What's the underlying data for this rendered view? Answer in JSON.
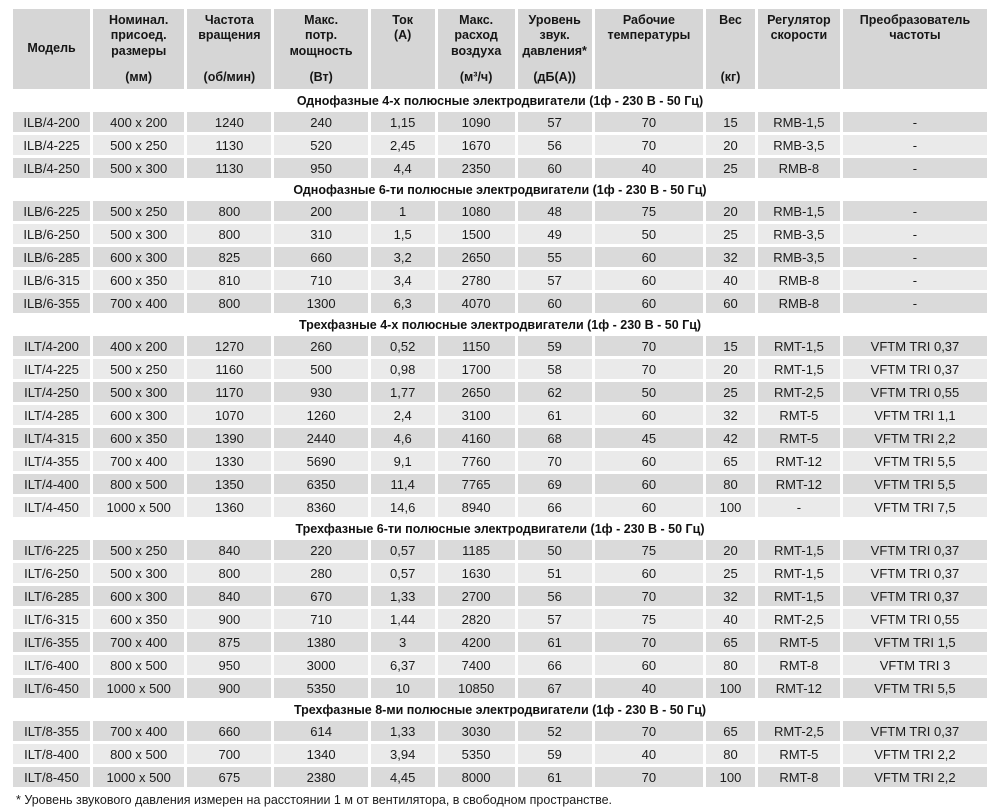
{
  "colors": {
    "header_bg": "#d6d6d6",
    "row_odd_bg": "#dadada",
    "row_even_bg": "#eaeaea",
    "section_bg": "#ffffff",
    "text": "#1b1b1b"
  },
  "table": {
    "headers": [
      {
        "key": "model",
        "lines": [
          "Модель"
        ],
        "valign": "center"
      },
      {
        "key": "dimensions",
        "lines": [
          "Номинал.",
          "присоед.",
          "размеры"
        ],
        "unit": "(мм)"
      },
      {
        "key": "speed",
        "lines": [
          "Частота",
          "вращения"
        ],
        "unit": "(об/мин)"
      },
      {
        "key": "power",
        "lines": [
          "Макс.",
          "потр.",
          "мощность"
        ],
        "unit": "(Вт)"
      },
      {
        "key": "current",
        "lines": [
          "Ток",
          "(А)"
        ]
      },
      {
        "key": "airflow",
        "lines": [
          "Макс.",
          "расход",
          "воздуха"
        ],
        "unit": "(м³/ч)"
      },
      {
        "key": "noise",
        "lines": [
          "Уровень",
          "звук.",
          "давления*"
        ],
        "unit": "(дБ(А))"
      },
      {
        "key": "temperature",
        "lines": [
          "Рабочие",
          "температуры"
        ]
      },
      {
        "key": "weight",
        "lines": [
          "Вес"
        ],
        "unit": "(кг)"
      },
      {
        "key": "regulator",
        "lines": [
          "Регулятор",
          "скорости"
        ]
      },
      {
        "key": "converter",
        "lines": [
          "Преобразователь",
          "частоты"
        ]
      }
    ],
    "sections": [
      {
        "title": "Однофазные 4-х полюсные электродвигатели (1ф - 230 В - 50 Гц)",
        "rows": [
          [
            "ILB/4-200",
            "400 x 200",
            "1240",
            "240",
            "1,15",
            "1090",
            "57",
            "70",
            "15",
            "RMB-1,5",
            "-"
          ],
          [
            "ILB/4-225",
            "500 x 250",
            "1130",
            "520",
            "2,45",
            "1670",
            "56",
            "70",
            "20",
            "RMB-3,5",
            "-"
          ],
          [
            "ILB/4-250",
            "500 x 300",
            "1130",
            "950",
            "4,4",
            "2350",
            "60",
            "40",
            "25",
            "RMB-8",
            "-"
          ]
        ]
      },
      {
        "title": "Однофазные 6-ти полюсные электродвигатели (1ф - 230 В - 50 Гц)",
        "rows": [
          [
            "ILB/6-225",
            "500 x 250",
            "800",
            "200",
            "1",
            "1080",
            "48",
            "75",
            "20",
            "RMB-1,5",
            "-"
          ],
          [
            "ILB/6-250",
            "500 x 300",
            "800",
            "310",
            "1,5",
            "1500",
            "49",
            "50",
            "25",
            "RMB-3,5",
            "-"
          ],
          [
            "ILB/6-285",
            "600 x 300",
            "825",
            "660",
            "3,2",
            "2650",
            "55",
            "60",
            "32",
            "RMB-3,5",
            "-"
          ],
          [
            "ILB/6-315",
            "600 x 350",
            "810",
            "710",
            "3,4",
            "2780",
            "57",
            "60",
            "40",
            "RMB-8",
            "-"
          ],
          [
            "ILB/6-355",
            "700 x 400",
            "800",
            "1300",
            "6,3",
            "4070",
            "60",
            "60",
            "60",
            "RMB-8",
            "-"
          ]
        ]
      },
      {
        "title": "Трехфазные 4-х полюсные электродвигатели (1ф - 230 В - 50 Гц)",
        "rows": [
          [
            "ILT/4-200",
            "400 x 200",
            "1270",
            "260",
            "0,52",
            "1150",
            "59",
            "70",
            "15",
            "RMT-1,5",
            "VFTM TRI 0,37"
          ],
          [
            "ILT/4-225",
            "500 x 250",
            "1160",
            "500",
            "0,98",
            "1700",
            "58",
            "70",
            "20",
            "RMT-1,5",
            "VFTM TRI 0,37"
          ],
          [
            "ILT/4-250",
            "500 x 300",
            "1170",
            "930",
            "1,77",
            "2650",
            "62",
            "50",
            "25",
            "RMT-2,5",
            "VFTM TRI 0,55"
          ],
          [
            "ILT/4-285",
            "600 x 300",
            "1070",
            "1260",
            "2,4",
            "3100",
            "61",
            "60",
            "32",
            "RMT-5",
            "VFTM TRI 1,1"
          ],
          [
            "ILT/4-315",
            "600 x 350",
            "1390",
            "2440",
            "4,6",
            "4160",
            "68",
            "45",
            "42",
            "RMT-5",
            "VFTM TRI 2,2"
          ],
          [
            "ILT/4-355",
            "700 x 400",
            "1330",
            "5690",
            "9,1",
            "7760",
            "70",
            "60",
            "65",
            "RMT-12",
            "VFTM TRI 5,5"
          ],
          [
            "ILT/4-400",
            "800 x 500",
            "1350",
            "6350",
            "11,4",
            "7765",
            "69",
            "60",
            "80",
            "RMT-12",
            "VFTM TRI 5,5"
          ],
          [
            "ILT/4-450",
            "1000 x 500",
            "1360",
            "8360",
            "14,6",
            "8940",
            "66",
            "60",
            "100",
            "-",
            "VFTM TRI 7,5"
          ]
        ]
      },
      {
        "title": "Трехфазные 6-ти полюсные электродвигатели (1ф - 230 В - 50 Гц)",
        "rows": [
          [
            "ILT/6-225",
            "500 x 250",
            "840",
            "220",
            "0,57",
            "1185",
            "50",
            "75",
            "20",
            "RMT-1,5",
            "VFTM TRI 0,37"
          ],
          [
            "ILT/6-250",
            "500 x 300",
            "800",
            "280",
            "0,57",
            "1630",
            "51",
            "60",
            "25",
            "RMT-1,5",
            "VFTM TRI 0,37"
          ],
          [
            "ILT/6-285",
            "600 x 300",
            "840",
            "670",
            "1,33",
            "2700",
            "56",
            "70",
            "32",
            "RMT-1,5",
            "VFTM TRI 0,37"
          ],
          [
            "ILT/6-315",
            "600 x 350",
            "900",
            "710",
            "1,44",
            "2820",
            "57",
            "75",
            "40",
            "RMT-2,5",
            "VFTM TRI 0,55"
          ],
          [
            "ILT/6-355",
            "700 x 400",
            "875",
            "1380",
            "3",
            "4200",
            "61",
            "70",
            "65",
            "RMT-5",
            "VFTM TRI 1,5"
          ],
          [
            "ILT/6-400",
            "800 x 500",
            "950",
            "3000",
            "6,37",
            "7400",
            "66",
            "60",
            "80",
            "RMT-8",
            "VFTM TRI 3"
          ],
          [
            "ILT/6-450",
            "1000 x 500",
            "900",
            "5350",
            "10",
            "10850",
            "67",
            "40",
            "100",
            "RMT-12",
            "VFTM TRI 5,5"
          ]
        ]
      },
      {
        "title": "Трехфазные 8-ми полюсные электродвигатели (1ф - 230 В - 50 Гц)",
        "rows": [
          [
            "ILT/8-355",
            "700 x 400",
            "660",
            "614",
            "1,33",
            "3030",
            "52",
            "70",
            "65",
            "RMT-2,5",
            "VFTM TRI 0,37"
          ],
          [
            "ILT/8-400",
            "800 x 500",
            "700",
            "1340",
            "3,94",
            "5350",
            "59",
            "40",
            "80",
            "RMT-5",
            "VFTM TRI 2,2"
          ],
          [
            "ILT/8-450",
            "1000 x 500",
            "675",
            "2380",
            "4,45",
            "8000",
            "61",
            "70",
            "100",
            "RMT-8",
            "VFTM TRI 2,2"
          ]
        ]
      }
    ]
  },
  "footnote": "* Уровень звукового давления измерен на расстоянии 1 м от вентилятора, в свободном пространстве."
}
